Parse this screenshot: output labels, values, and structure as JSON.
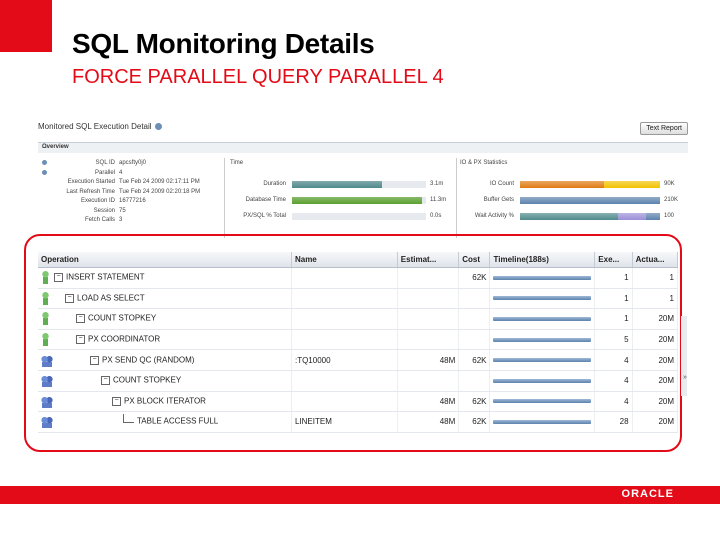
{
  "slide": {
    "title": "SQL Monitoring Details",
    "subtitle": "FORCE PARALLEL QUERY PARALLEL 4",
    "logo": "ORACLE"
  },
  "colors": {
    "accent": "#e30b17",
    "bar_blue": "#5c82ad",
    "bar_teal": "#4f8a8b",
    "bar_green": "#5aa02c",
    "bar_orange": "#e07b12",
    "bar_yellow": "#f2c200",
    "bar_purple": "#9a8fd8"
  },
  "page": {
    "heading": "Monitored SQL Execution Detail",
    "report_button": "Text Report",
    "overview_label": "Overview"
  },
  "general": [
    {
      "label": "SQL ID",
      "value": "apcsfty0j0"
    },
    {
      "label": "Parallel",
      "value": "4"
    },
    {
      "label": "Execution Started",
      "value": "Tue Feb 24 2009 02:17:11 PM"
    },
    {
      "label": "Last Refresh Time",
      "value": "Tue Feb 24 2009 02:20:18 PM"
    },
    {
      "label": "Execution ID",
      "value": "16777216"
    },
    {
      "label": "Session",
      "value": "75"
    },
    {
      "label": "Fetch Calls",
      "value": "3"
    }
  ],
  "time_section": {
    "title": "Time",
    "rows": [
      {
        "label": "Duration",
        "value": "3.1m",
        "fill": 0.67
      },
      {
        "label": "Database Time",
        "value": "11.3m",
        "fill": 0.97
      },
      {
        "label": "PX/SQL % Total",
        "value": "0.0s",
        "fill": 0.0
      }
    ]
  },
  "io_section": {
    "title": "IO & PX Statistics",
    "rows": [
      {
        "label": "IO Count",
        "value": "90K"
      },
      {
        "label": "Buffer Gets",
        "value": "210K"
      },
      {
        "label": "Wait Activity %",
        "value": "100"
      }
    ]
  },
  "grid": {
    "columns": [
      "Operation",
      "Name",
      "Estimat...",
      "Cost",
      "Timeline(188s)",
      "Exe...",
      "Actua..."
    ],
    "rows": [
      {
        "icon": "solo",
        "tree": "box",
        "depth": 0,
        "operation": "INSERT STATEMENT",
        "name": "",
        "estimate": "",
        "cost": "62K",
        "timeline": 1.0,
        "exec": "1",
        "actual": "1"
      },
      {
        "icon": "solo",
        "tree": "box",
        "depth": 1,
        "operation": "LOAD AS SELECT",
        "name": "",
        "estimate": "",
        "cost": "",
        "timeline": 1.0,
        "exec": "1",
        "actual": "1"
      },
      {
        "icon": "solo",
        "tree": "box",
        "depth": 2,
        "operation": "COUNT STOPKEY",
        "name": "",
        "estimate": "",
        "cost": "",
        "timeline": 1.0,
        "exec": "1",
        "actual": "20M"
      },
      {
        "icon": "solo",
        "tree": "box",
        "depth": 2,
        "operation": "PX COORDINATOR",
        "name": "",
        "estimate": "",
        "cost": "",
        "timeline": 1.0,
        "exec": "5",
        "actual": "20M"
      },
      {
        "icon": "multi",
        "tree": "box",
        "depth": 3,
        "operation": "PX SEND QC (RANDOM)",
        "name": ":TQ10000",
        "estimate": "48M",
        "cost": "62K",
        "timeline": 1.0,
        "exec": "4",
        "actual": "20M"
      },
      {
        "icon": "multi",
        "tree": "box",
        "depth": 4,
        "operation": "COUNT STOPKEY",
        "name": "",
        "estimate": "",
        "cost": "",
        "timeline": 1.0,
        "exec": "4",
        "actual": "20M"
      },
      {
        "icon": "multi",
        "tree": "box",
        "depth": 5,
        "operation": "PX BLOCK ITERATOR",
        "name": "",
        "estimate": "48M",
        "cost": "62K",
        "timeline": 1.0,
        "exec": "4",
        "actual": "20M"
      },
      {
        "icon": "multi",
        "tree": "leaf",
        "depth": 6,
        "operation": "TABLE ACCESS FULL",
        "name": "LINEITEM",
        "estimate": "48M",
        "cost": "62K",
        "timeline": 1.0,
        "exec": "28",
        "actual": "20M"
      }
    ]
  }
}
